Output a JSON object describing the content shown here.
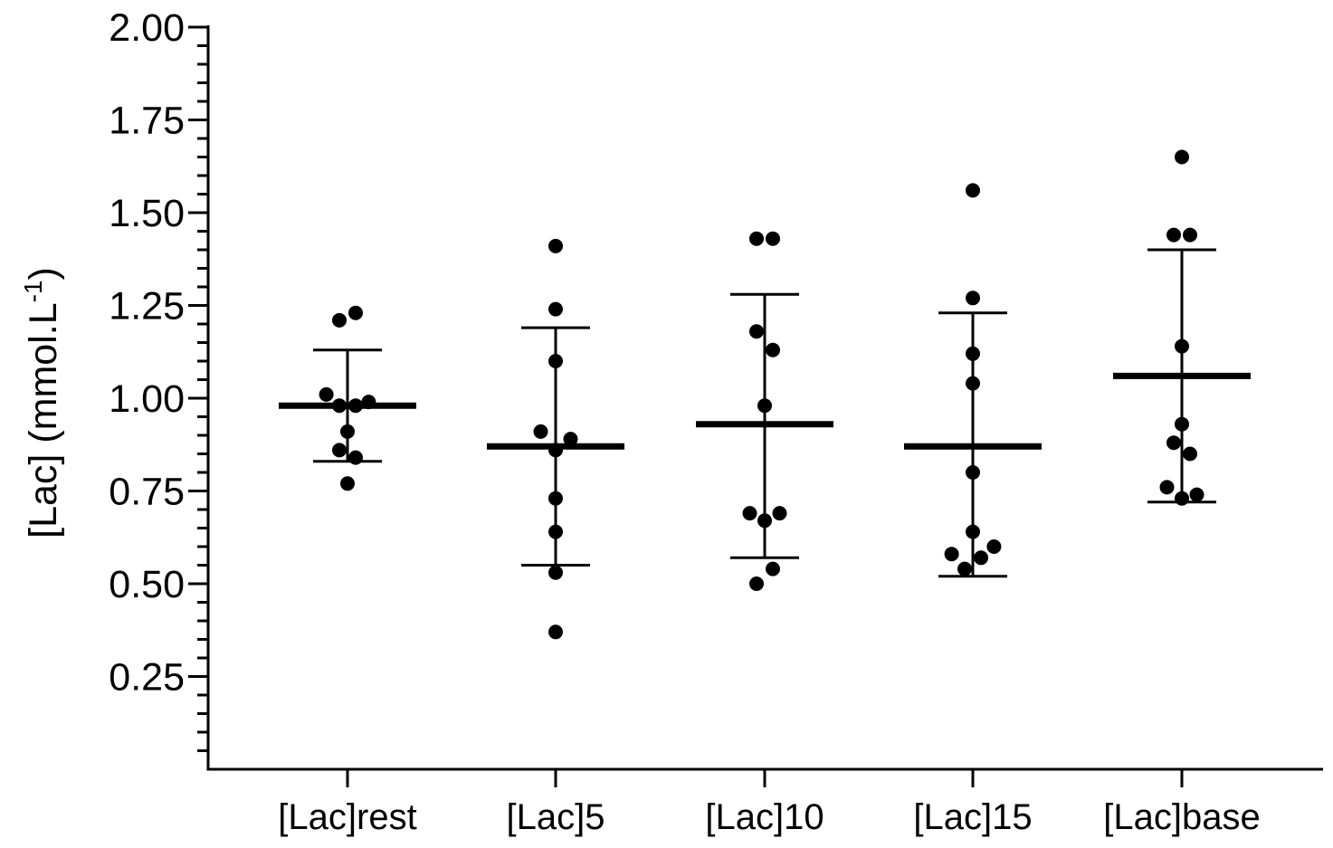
{
  "chart_data": {
    "type": "scatter",
    "ylabel": "[Lac] (mmol.L",
    "ylabel_superscript": "-1",
    "ylabel_suffix": ")",
    "ylim": [
      0,
      2.0
    ],
    "yticks": [
      "0.25",
      "0.50",
      "0.75",
      "1.00",
      "1.25",
      "1.50",
      "1.75",
      "2.00"
    ],
    "yticks_values": [
      0.25,
      0.5,
      0.75,
      1.0,
      1.25,
      1.5,
      1.75,
      2.0
    ],
    "categories": [
      "[Lac]rest",
      "[Lac]5",
      "[Lac]10",
      "[Lac]15",
      "[Lac]base"
    ],
    "grid": false,
    "groups": [
      {
        "category": "[Lac]rest",
        "mean": 0.98,
        "sd_upper": 1.13,
        "sd_lower": 0.83,
        "points": [
          {
            "offset": -0.3,
            "y": 1.21
          },
          {
            "offset": 0.3,
            "y": 1.23
          },
          {
            "offset": -0.78,
            "y": 1.01
          },
          {
            "offset": -0.3,
            "y": 0.98
          },
          {
            "offset": 0.3,
            "y": 0.98
          },
          {
            "offset": 0.78,
            "y": 0.99
          },
          {
            "offset": 0.0,
            "y": 0.91
          },
          {
            "offset": -0.3,
            "y": 0.86
          },
          {
            "offset": 0.3,
            "y": 0.84
          },
          {
            "offset": 0.0,
            "y": 0.77
          }
        ]
      },
      {
        "category": "[Lac]5",
        "mean": 0.87,
        "sd_upper": 1.19,
        "sd_lower": 0.55,
        "points": [
          {
            "offset": 0.0,
            "y": 1.41
          },
          {
            "offset": 0.0,
            "y": 1.24
          },
          {
            "offset": 0.0,
            "y": 1.1
          },
          {
            "offset": -0.55,
            "y": 0.91
          },
          {
            "offset": 0.55,
            "y": 0.89
          },
          {
            "offset": 0.0,
            "y": 0.86
          },
          {
            "offset": 0.0,
            "y": 0.73
          },
          {
            "offset": 0.0,
            "y": 0.64
          },
          {
            "offset": 0.0,
            "y": 0.53
          },
          {
            "offset": 0.0,
            "y": 0.37
          }
        ]
      },
      {
        "category": "[Lac]10",
        "mean": 0.93,
        "sd_upper": 1.28,
        "sd_lower": 0.57,
        "points": [
          {
            "offset": -0.3,
            "y": 1.43
          },
          {
            "offset": 0.3,
            "y": 1.43
          },
          {
            "offset": -0.3,
            "y": 1.18
          },
          {
            "offset": 0.3,
            "y": 1.13
          },
          {
            "offset": 0.0,
            "y": 0.98
          },
          {
            "offset": -0.55,
            "y": 0.69
          },
          {
            "offset": 0.55,
            "y": 0.69
          },
          {
            "offset": 0.0,
            "y": 0.67
          },
          {
            "offset": 0.3,
            "y": 0.54
          },
          {
            "offset": -0.3,
            "y": 0.5
          }
        ]
      },
      {
        "category": "[Lac]15",
        "mean": 0.87,
        "sd_upper": 1.23,
        "sd_lower": 0.52,
        "points": [
          {
            "offset": 0.0,
            "y": 1.56
          },
          {
            "offset": 0.0,
            "y": 1.27
          },
          {
            "offset": 0.0,
            "y": 1.12
          },
          {
            "offset": 0.0,
            "y": 1.04
          },
          {
            "offset": 0.0,
            "y": 0.8
          },
          {
            "offset": 0.0,
            "y": 0.64
          },
          {
            "offset": -0.78,
            "y": 0.58
          },
          {
            "offset": 0.78,
            "y": 0.6
          },
          {
            "offset": 0.3,
            "y": 0.57
          },
          {
            "offset": -0.3,
            "y": 0.54
          }
        ]
      },
      {
        "category": "[Lac]base",
        "mean": 1.06,
        "sd_upper": 1.4,
        "sd_lower": 0.72,
        "points": [
          {
            "offset": 0.0,
            "y": 1.65
          },
          {
            "offset": -0.3,
            "y": 1.44
          },
          {
            "offset": 0.3,
            "y": 1.44
          },
          {
            "offset": 0.0,
            "y": 1.14
          },
          {
            "offset": 0.0,
            "y": 0.93
          },
          {
            "offset": -0.3,
            "y": 0.88
          },
          {
            "offset": 0.3,
            "y": 0.85
          },
          {
            "offset": -0.55,
            "y": 0.76
          },
          {
            "offset": 0.55,
            "y": 0.74
          },
          {
            "offset": 0.0,
            "y": 0.73
          }
        ]
      }
    ]
  }
}
